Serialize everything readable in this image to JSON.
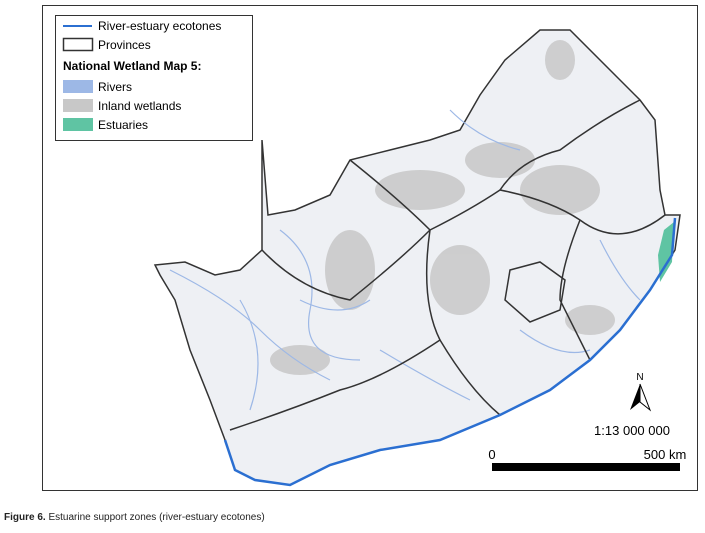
{
  "legend": {
    "items": [
      {
        "label": "River-estuary ecotones"
      },
      {
        "label": "Provinces"
      }
    ],
    "heading": "National Wetland Map 5:",
    "classes": [
      {
        "label": "Rivers"
      },
      {
        "label": "Inland wetlands"
      },
      {
        "label": "Estuaries"
      }
    ]
  },
  "north_arrow": {
    "label": "N"
  },
  "scale": {
    "ratio": "1:13 000 000",
    "bar_labels": [
      "0",
      "500 km"
    ]
  },
  "caption": {
    "label": "Figure 6.",
    "text": "Estuarine support zones (river-estuary ecotones)"
  }
}
